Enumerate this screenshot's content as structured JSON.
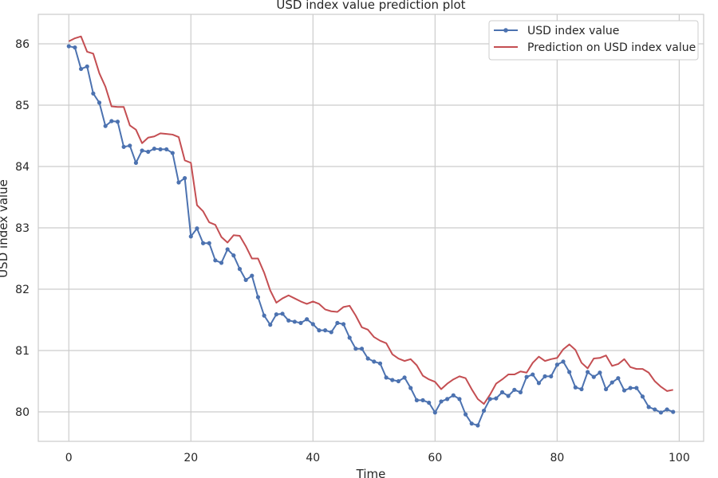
{
  "chart_data": {
    "type": "line",
    "title": "USD index value prediction plot",
    "xlabel": "Time",
    "ylabel": "USD index value",
    "xlim": [
      -5,
      104
    ],
    "ylim": [
      79.52,
      86.48
    ],
    "xticks": [
      0,
      20,
      40,
      60,
      80,
      100
    ],
    "yticks": [
      80,
      81,
      82,
      83,
      84,
      85,
      86
    ],
    "grid": true,
    "legend_position": "top-right",
    "series": [
      {
        "name": "USD index value",
        "color": "#4c72b0",
        "marker": "circle",
        "x": [
          0,
          1,
          2,
          3,
          4,
          5,
          6,
          7,
          8,
          9,
          10,
          11,
          12,
          13,
          14,
          15,
          16,
          17,
          18,
          19,
          20,
          21,
          22,
          23,
          24,
          25,
          26,
          27,
          28,
          29,
          30,
          31,
          32,
          33,
          34,
          35,
          36,
          37,
          38,
          39,
          40,
          41,
          42,
          43,
          44,
          45,
          46,
          47,
          48,
          49,
          50,
          51,
          52,
          53,
          54,
          55,
          56,
          57,
          58,
          59,
          60,
          61,
          62,
          63,
          64,
          65,
          66,
          67,
          68,
          69,
          70,
          71,
          72,
          73,
          74,
          75,
          76,
          77,
          78,
          79,
          80,
          81,
          82,
          83,
          84,
          85,
          86,
          87,
          88,
          89,
          90,
          91,
          92,
          93,
          94,
          95,
          96,
          97,
          98,
          99
        ],
        "values": [
          85.96,
          85.94,
          85.59,
          85.63,
          85.19,
          85.04,
          84.66,
          84.74,
          84.73,
          84.32,
          84.34,
          84.06,
          84.26,
          84.24,
          84.29,
          84.28,
          84.28,
          84.22,
          83.74,
          83.81,
          82.86,
          82.99,
          82.75,
          82.75,
          82.47,
          82.43,
          82.65,
          82.55,
          82.33,
          82.15,
          82.22,
          81.87,
          81.57,
          81.42,
          81.59,
          81.6,
          81.49,
          81.47,
          81.45,
          81.51,
          81.43,
          81.33,
          81.33,
          81.3,
          81.45,
          81.43,
          81.21,
          81.03,
          81.03,
          80.87,
          80.82,
          80.79,
          80.56,
          80.52,
          80.5,
          80.56,
          80.39,
          80.19,
          80.19,
          80.15,
          79.99,
          80.17,
          80.21,
          80.27,
          80.21,
          79.96,
          79.81,
          79.78,
          80.02,
          80.21,
          80.22,
          80.32,
          80.26,
          80.36,
          80.32,
          80.57,
          80.61,
          80.47,
          80.58,
          80.58,
          80.77,
          80.82,
          80.65,
          80.4,
          80.37,
          80.65,
          80.57,
          80.64,
          80.37,
          80.48,
          80.55,
          80.35,
          80.39,
          80.39,
          80.25,
          80.08,
          80.04,
          79.99,
          80.04,
          80.0
        ]
      },
      {
        "name": "Prediction on USD index value",
        "color": "#c44e52",
        "marker": "none",
        "x": [
          0,
          1,
          2,
          3,
          4,
          5,
          6,
          7,
          8,
          9,
          10,
          11,
          12,
          13,
          14,
          15,
          16,
          17,
          18,
          19,
          20,
          21,
          22,
          23,
          24,
          25,
          26,
          27,
          28,
          29,
          30,
          31,
          32,
          33,
          34,
          35,
          36,
          37,
          38,
          39,
          40,
          41,
          42,
          43,
          44,
          45,
          46,
          47,
          48,
          49,
          50,
          51,
          52,
          53,
          54,
          55,
          56,
          57,
          58,
          59,
          60,
          61,
          62,
          63,
          64,
          65,
          66,
          67,
          68,
          69,
          70,
          71,
          72,
          73,
          74,
          75,
          76,
          77,
          78,
          79,
          80,
          81,
          82,
          83,
          84,
          85,
          86,
          87,
          88,
          89,
          90,
          91,
          92,
          93,
          94,
          95,
          96,
          97,
          98,
          99
        ],
        "values": [
          86.04,
          86.09,
          86.12,
          85.87,
          85.84,
          85.52,
          85.3,
          84.98,
          84.97,
          84.97,
          84.67,
          84.6,
          84.38,
          84.47,
          84.49,
          84.54,
          84.53,
          84.52,
          84.48,
          84.1,
          84.06,
          83.37,
          83.27,
          83.09,
          83.05,
          82.85,
          82.76,
          82.88,
          82.87,
          82.7,
          82.5,
          82.5,
          82.27,
          81.98,
          81.78,
          81.85,
          81.9,
          81.85,
          81.8,
          81.76,
          81.8,
          81.76,
          81.67,
          81.64,
          81.63,
          81.71,
          81.73,
          81.57,
          81.38,
          81.34,
          81.22,
          81.16,
          81.12,
          80.94,
          80.87,
          80.83,
          80.86,
          80.76,
          80.59,
          80.53,
          80.49,
          80.37,
          80.46,
          80.53,
          80.58,
          80.55,
          80.37,
          80.21,
          80.13,
          80.28,
          80.46,
          80.53,
          80.61,
          80.61,
          80.66,
          80.64,
          80.8,
          80.9,
          80.83,
          80.86,
          80.88,
          81.02,
          81.1,
          81.01,
          80.8,
          80.71,
          80.87,
          80.88,
          80.92,
          80.75,
          80.78,
          80.86,
          80.73,
          80.7,
          80.7,
          80.64,
          80.5,
          80.41,
          80.34,
          80.36
        ]
      }
    ]
  }
}
